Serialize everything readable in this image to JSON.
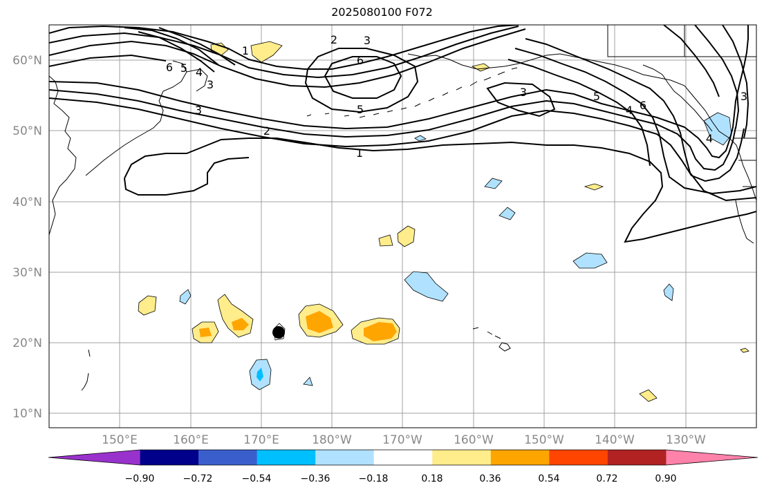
{
  "title": "2025080100 F072",
  "map": {
    "lat_ticks": [
      "60°N",
      "50°N",
      "40°N",
      "30°N",
      "20°N",
      "10°N"
    ],
    "lon_ticks": [
      "150°E",
      "160°E",
      "170°E",
      "180°W",
      "170°W",
      "160°W",
      "150°W",
      "140°W",
      "130°W"
    ]
  },
  "contour_labels": [
    "1",
    "2",
    "3",
    "6",
    "5",
    "3",
    "5",
    "4",
    "6",
    "3",
    "2",
    "1",
    "6",
    "5",
    "4",
    "3",
    "4",
    "3"
  ],
  "colorbar": {
    "tick_labels": [
      "−0.90",
      "−0.72",
      "−0.54",
      "−0.36",
      "−0.18",
      "0.18",
      "0.36",
      "0.54",
      "0.72",
      "0.90"
    ],
    "colors": [
      "#9932cc",
      "#00008b",
      "#3a5fcd",
      "#00bfff",
      "#b0e2ff",
      "#ffffff",
      "#ffec8b",
      "#ffa500",
      "#ff4500",
      "#b22222",
      "#ff82ab"
    ]
  },
  "shading_colors": {
    "light_blue": "#b0e2ff",
    "blue": "#00bfff",
    "light_yellow": "#ffec8b",
    "orange": "#ffa500"
  },
  "typhoon_marker": "storm-center-marker"
}
